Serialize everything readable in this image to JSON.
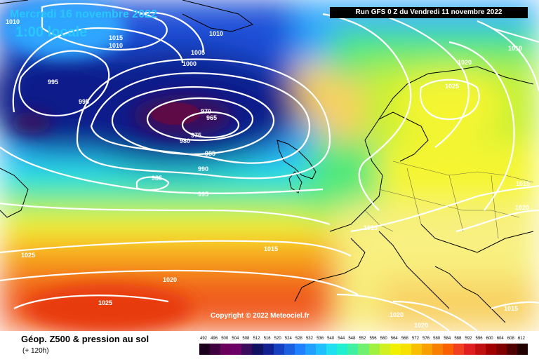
{
  "overlay": {
    "date": "Mercredi 16 novembre 2022",
    "time_local": "1:00 locale",
    "run_info": "Run GFS 0 Z du Vendredi 11 novembre 2022",
    "copyright": "Copyright © 2022 Meteociel.fr"
  },
  "legend": {
    "parameter": "Géop. Z500 & pression au sol",
    "lead_time": "(+ 120h)",
    "scale_values": [
      "492",
      "496",
      "500",
      "504",
      "508",
      "512",
      "516",
      "520",
      "524",
      "528",
      "532",
      "536",
      "540",
      "544",
      "548",
      "552",
      "556",
      "560",
      "564",
      "568",
      "572",
      "576",
      "580",
      "584",
      "588",
      "592",
      "596",
      "600",
      "604",
      "608",
      "612"
    ],
    "scale_colors": [
      "#1a001a",
      "#400040",
      "#6a005c",
      "#6d0065",
      "#3a0a5c",
      "#101060",
      "#102090",
      "#1540c0",
      "#1a60e0",
      "#2080ff",
      "#20a0ff",
      "#20c0ff",
      "#20e0f0",
      "#20f0d0",
      "#40f0a0",
      "#70f070",
      "#a0f040",
      "#d0f020",
      "#f0f000",
      "#f8e000",
      "#f8c000",
      "#f8a000",
      "#f88000",
      "#f86000",
      "#f04020",
      "#e02020",
      "#c01010",
      "#a00000",
      "#800000",
      "#500000",
      "#200000"
    ]
  },
  "isobar_labels": [
    "1015",
    "1010",
    "1010",
    "1005",
    "1000",
    "995",
    "995",
    "970",
    "965",
    "975",
    "980",
    "985",
    "990",
    "985",
    "995",
    "1010",
    "1020",
    "1025",
    "1015",
    "1020",
    "1025",
    "1015",
    "1020",
    "1025",
    "1020",
    "1015",
    "1020",
    "1010"
  ],
  "map_style": {
    "colors": {
      "deep_low": "#3a0f5c",
      "low_center": "#6a0a40",
      "navy": "#0d1b8a",
      "blue": "#1a4fd8",
      "light_blue": "#2ea6ff",
      "cyan": "#22e0f0",
      "green": "#4fe87a",
      "yellowgreen": "#bff033",
      "yellow": "#f5f533",
      "pale_yellow": "#f8f080",
      "orange": "#f7a21a",
      "red": "#f05a1a"
    }
  }
}
